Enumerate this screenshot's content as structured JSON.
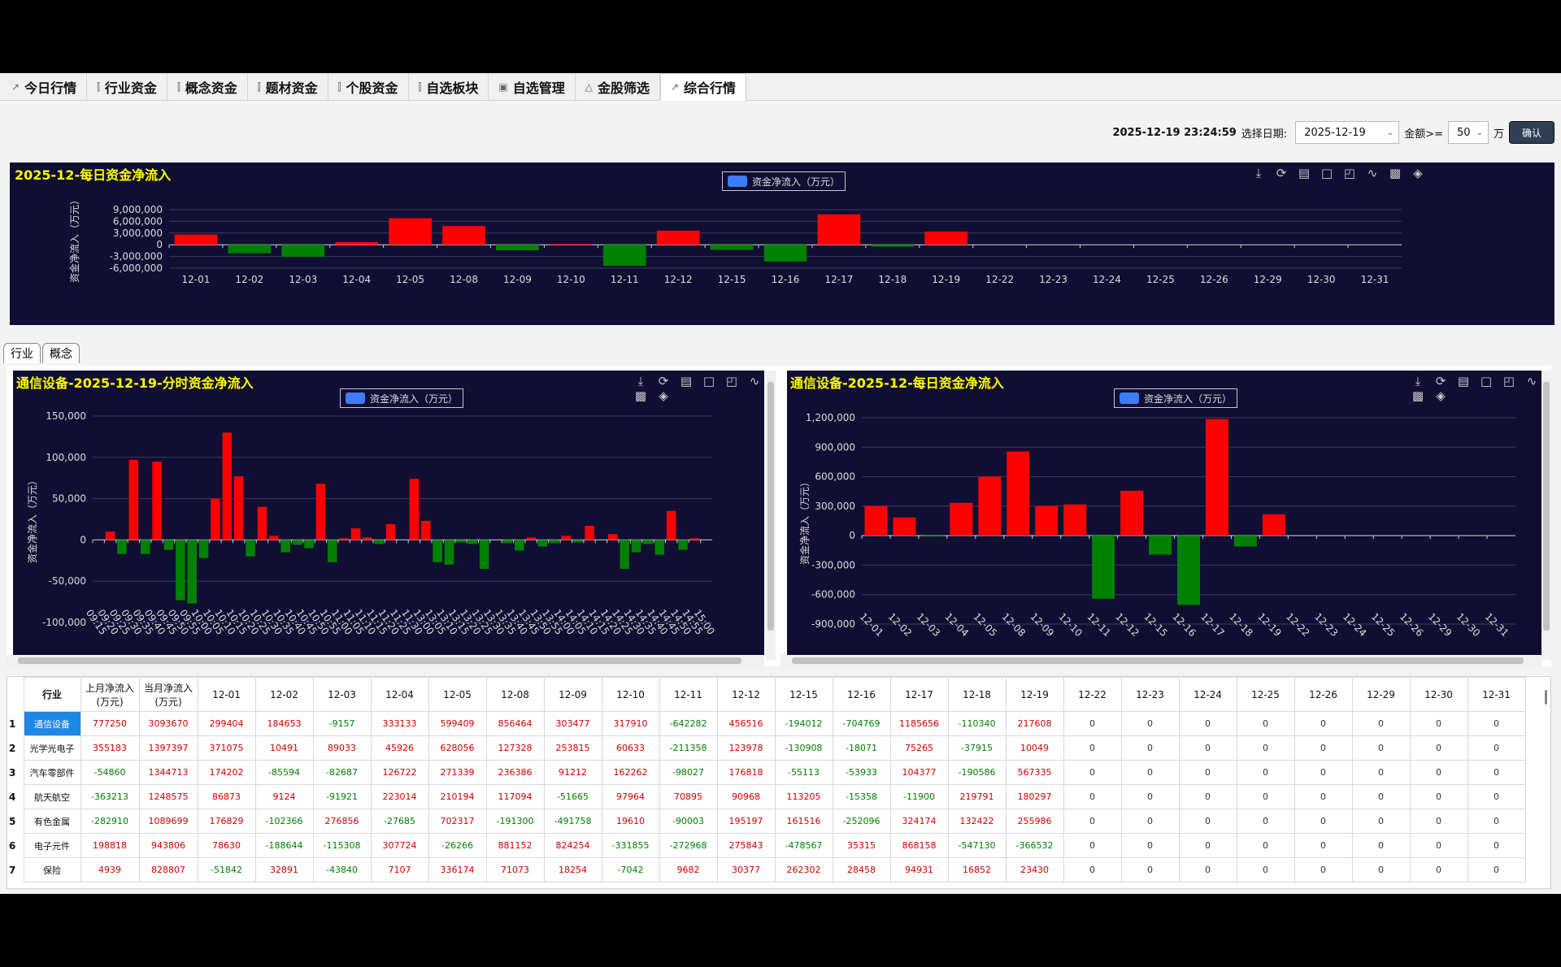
{
  "tabs": [
    {
      "label": "今日行情",
      "icon": "chart-icon"
    },
    {
      "label": "行业资金",
      "icon": "candlestick-icon"
    },
    {
      "label": "概念资金",
      "icon": "candlestick-icon"
    },
    {
      "label": "题材资金",
      "icon": "candlestick-icon"
    },
    {
      "label": "个股资金",
      "icon": "candlestick-icon"
    },
    {
      "label": "自选板块",
      "icon": "candlestick-icon"
    },
    {
      "label": "自选管理",
      "icon": "monitor-icon"
    },
    {
      "label": "金股筛选",
      "icon": "mountain-icon"
    },
    {
      "label": "综合行情",
      "icon": "chart-icon"
    }
  ],
  "active_tab": 8,
  "filter": {
    "datetime": "2025-12-19 23:24:59",
    "date_label": "选择日期:",
    "date_value": "2025-12-19",
    "amount_label": "金额>=",
    "amount_value": "50",
    "unit": "万",
    "confirm_label": "确认"
  },
  "subtabs": [
    "行业",
    "概念"
  ],
  "legend_label": "资金净流入（万元）",
  "chart_data": [
    {
      "type": "bar",
      "title": "2025-12-每日资金净流入",
      "ylabel": "资金净流入（万元）",
      "ylim": [
        -6000000,
        9000000
      ],
      "yticks": [
        "9,000,000",
        "6,000,000",
        "3,000,000",
        "0",
        "-3,000,000",
        "-6,000,000"
      ],
      "yticks_values": [
        9000000,
        6000000,
        3000000,
        0,
        -3000000,
        -6000000
      ],
      "categories": [
        "12-01",
        "12-02",
        "12-03",
        "12-04",
        "12-05",
        "12-08",
        "12-09",
        "12-10",
        "12-11",
        "12-12",
        "12-15",
        "12-16",
        "12-17",
        "12-18",
        "12-19",
        "12-22",
        "12-23",
        "12-24",
        "12-25",
        "12-26",
        "12-29",
        "12-30",
        "12-31"
      ],
      "values": [
        2600000,
        -2200000,
        -3100000,
        700000,
        6800000,
        4800000,
        -1400000,
        200000,
        -5400000,
        3600000,
        -1300000,
        -4300000,
        7800000,
        -500000,
        3400000,
        0,
        0,
        0,
        0,
        0,
        0,
        0,
        0
      ]
    },
    {
      "type": "bar",
      "title": "通信设备-2025-12-19-分时资金净流入",
      "ylabel": "资金净流入（万元）",
      "ylim": [
        -100000,
        150000
      ],
      "yticks": [
        "150,000",
        "100,000",
        "50,000",
        "0",
        "-50,000",
        "-100,000"
      ],
      "yticks_values": [
        150000,
        100000,
        50000,
        0,
        -50000,
        -100000
      ],
      "categories": [
        "09:15",
        "09:20",
        "09:25",
        "09:30",
        "09:35",
        "09:40",
        "09:45",
        "09:50",
        "09:55",
        "10:00",
        "10:05",
        "10:10",
        "10:15",
        "10:20",
        "10:25",
        "10:30",
        "10:35",
        "10:40",
        "10:45",
        "10:50",
        "10:55",
        "11:00",
        "11:05",
        "11:10",
        "11:15",
        "11:20",
        "11:25",
        "11:30",
        "13:00",
        "13:05",
        "13:10",
        "13:15",
        "13:20",
        "13:25",
        "13:30",
        "13:35",
        "13:40",
        "13:45",
        "13:50",
        "13:55",
        "14:00",
        "14:05",
        "14:10",
        "14:15",
        "14:20",
        "14:25",
        "14:30",
        "14:35",
        "14:40",
        "14:45",
        "14:50",
        "14:55",
        "15:00"
      ],
      "values": [
        0,
        10000,
        -17000,
        97000,
        -17000,
        95000,
        -12000,
        -73000,
        -77000,
        -22000,
        50000,
        130000,
        77000,
        -20000,
        40000,
        5000,
        -15000,
        -6000,
        -10000,
        68000,
        -27000,
        2000,
        14000,
        3000,
        -5000,
        19000,
        0,
        74000,
        23000,
        -27000,
        -30000,
        -3000,
        -5000,
        -35000,
        0,
        -4000,
        -13000,
        3000,
        -8000,
        -4000,
        5000,
        -3000,
        17000,
        0,
        7000,
        -35000,
        -15000,
        -5000,
        -18000,
        35000,
        -12000,
        2000,
        0
      ]
    },
    {
      "type": "bar",
      "title": "通信设备-2025-12-每日资金净流入",
      "ylabel": "资金净流入（万元）",
      "ylim": [
        -900000,
        1200000
      ],
      "yticks": [
        "1,200,000",
        "900,000",
        "600,000",
        "300,000",
        "0",
        "-300,000",
        "-600,000",
        "-900,000"
      ],
      "yticks_values": [
        1200000,
        900000,
        600000,
        300000,
        0,
        -300000,
        -600000,
        -900000
      ],
      "categories": [
        "12-01",
        "12-02",
        "12-03",
        "12-04",
        "12-05",
        "12-08",
        "12-09",
        "12-10",
        "12-11",
        "12-12",
        "12-15",
        "12-16",
        "12-17",
        "12-18",
        "12-19",
        "12-22",
        "12-23",
        "12-24",
        "12-25",
        "12-26",
        "12-29",
        "12-30",
        "12-31"
      ],
      "values": [
        299404,
        184653,
        -9157,
        333133,
        599409,
        856464,
        303477,
        317910,
        -642282,
        456516,
        -194012,
        -704769,
        1185656,
        -110340,
        217608,
        0,
        0,
        0,
        0,
        0,
        0,
        0,
        0
      ]
    }
  ],
  "table": {
    "headers": [
      "行业",
      "上月净流入\n(万元)",
      "当月净流入\n(万元)",
      "12-01",
      "12-02",
      "12-03",
      "12-04",
      "12-05",
      "12-08",
      "12-09",
      "12-10",
      "12-11",
      "12-12",
      "12-15",
      "12-16",
      "12-17",
      "12-18",
      "12-19",
      "12-22",
      "12-23",
      "12-24",
      "12-25",
      "12-26",
      "12-29",
      "12-30",
      "12-31"
    ],
    "rows": [
      {
        "n": "1",
        "name": "通信设备",
        "vals": [
          777250,
          3093670,
          299404,
          184653,
          -9157,
          333133,
          599409,
          856464,
          303477,
          317910,
          -642282,
          456516,
          -194012,
          -704769,
          1185656,
          -110340,
          217608,
          0,
          0,
          0,
          0,
          0,
          0,
          0,
          0
        ]
      },
      {
        "n": "2",
        "name": "光学光电子",
        "vals": [
          355183,
          1397397,
          371075,
          10491,
          89033,
          45926,
          628056,
          127328,
          253815,
          60633,
          -211358,
          123978,
          -130908,
          -18071,
          75265,
          -37915,
          10049,
          0,
          0,
          0,
          0,
          0,
          0,
          0,
          0
        ]
      },
      {
        "n": "3",
        "name": "汽车零部件",
        "vals": [
          -54860,
          1344713,
          174202,
          -85594,
          -82687,
          126722,
          271339,
          236386,
          91212,
          162262,
          -98027,
          176818,
          -55113,
          -53933,
          104377,
          -190586,
          567335,
          0,
          0,
          0,
          0,
          0,
          0,
          0,
          0
        ]
      },
      {
        "n": "4",
        "name": "航天航空",
        "vals": [
          -363213,
          1248575,
          86873,
          9124,
          -91921,
          223014,
          210194,
          117094,
          -51665,
          97964,
          70895,
          90968,
          113205,
          -15358,
          -11900,
          219791,
          180297,
          0,
          0,
          0,
          0,
          0,
          0,
          0,
          0
        ]
      },
      {
        "n": "5",
        "name": "有色金属",
        "vals": [
          -282910,
          1089699,
          176829,
          -102366,
          276856,
          -27685,
          702317,
          -191300,
          -491758,
          19610,
          -90003,
          195197,
          161516,
          -252096,
          324174,
          132422,
          255986,
          0,
          0,
          0,
          0,
          0,
          0,
          0,
          0
        ]
      },
      {
        "n": "6",
        "name": "电子元件",
        "vals": [
          198818,
          943806,
          78630,
          -188644,
          -115308,
          307724,
          -26266,
          881152,
          824254,
          -331855,
          -272968,
          275843,
          -478567,
          35315,
          868158,
          -547130,
          -366532,
          0,
          0,
          0,
          0,
          0,
          0,
          0,
          0
        ]
      },
      {
        "n": "7",
        "name": "保险",
        "vals": [
          4939,
          828807,
          -51842,
          32891,
          -43840,
          7107,
          336174,
          71073,
          18254,
          -7042,
          9682,
          30377,
          262302,
          28458,
          94931,
          16852,
          23430,
          0,
          0,
          0,
          0,
          0,
          0,
          0,
          0
        ]
      }
    ]
  },
  "colors": {
    "positive": "#ff0000",
    "negative": "#008000",
    "panel_bg": "#110e33",
    "title": "#ffff00",
    "selected": "#1e88e5"
  },
  "toolbox_icons": [
    "download-icon",
    "refresh-icon",
    "data-view-icon",
    "zoom-icon",
    "zoom-reset-icon",
    "line-chart-icon",
    "bar-chart-icon",
    "stack-icon"
  ]
}
